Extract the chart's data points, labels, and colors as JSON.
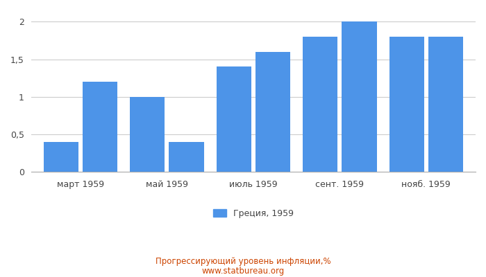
{
  "x_labels": [
    "март 1959",
    "май 1959",
    "июль 1959",
    "сент. 1959",
    "нояб. 1959"
  ],
  "values": [
    0.4,
    1.2,
    1.0,
    0.4,
    1.4,
    1.6,
    1.8,
    2.0,
    1.8,
    1.8
  ],
  "bar_color": "#4d94e8",
  "yticks": [
    0,
    0.5,
    1.0,
    1.5,
    2.0
  ],
  "ytick_labels": [
    "0",
    "0,5",
    "1",
    "1,5",
    "2"
  ],
  "ylim": [
    0,
    2.15
  ],
  "legend_label": "Греция, 1959",
  "footer_line1": "Прогрессирующий уровень инфляции,%",
  "footer_line2": "www.statbureau.org",
  "background_color": "#ffffff",
  "grid_color": "#cccccc"
}
